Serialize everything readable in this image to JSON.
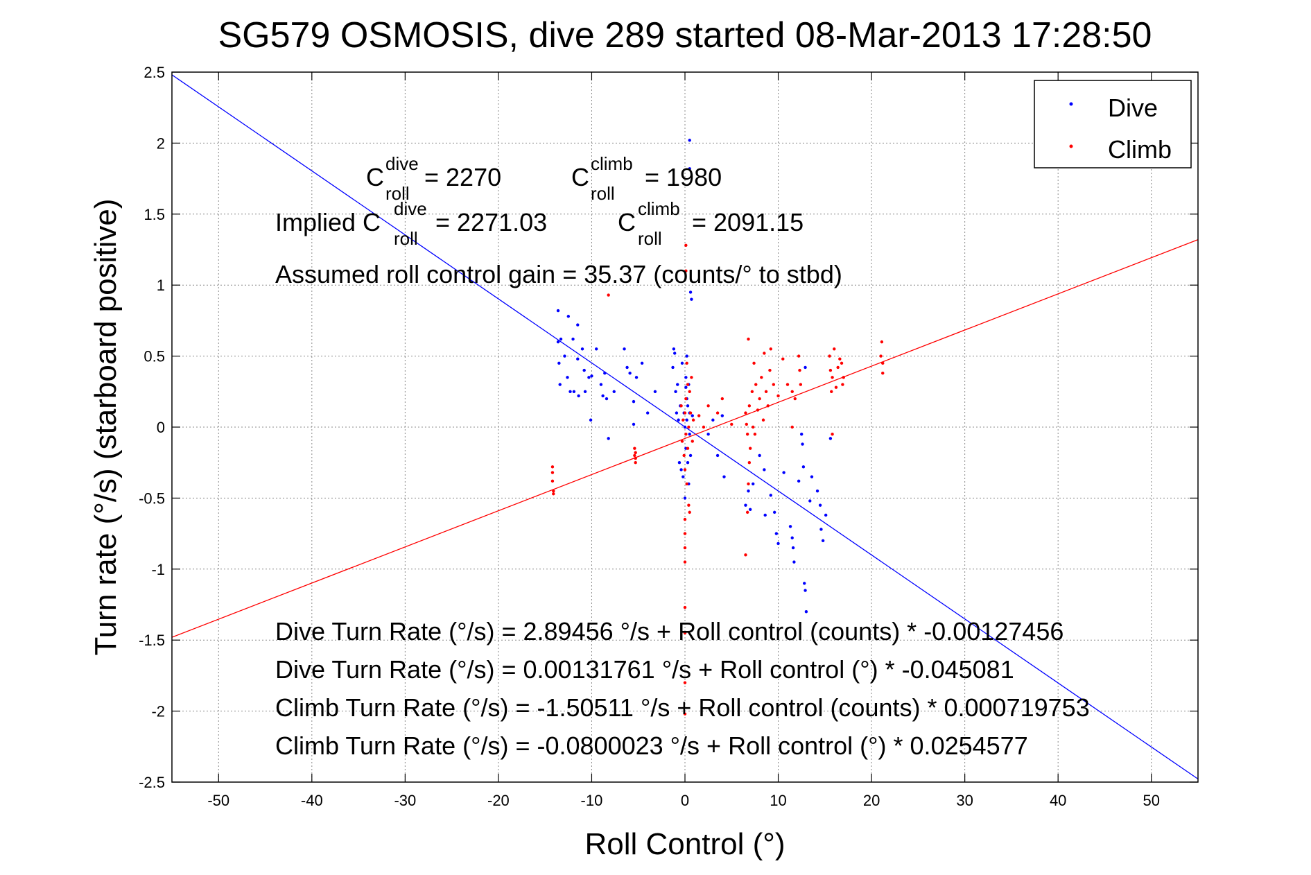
{
  "chart_data": {
    "type": "scatter",
    "title": "SG579 OSMOSIS, dive 289 started 08-Mar-2013 17:28:50",
    "xlabel": "Roll Control (°)",
    "ylabel": "Turn rate (°/s) (starboard positive)",
    "xlim": [
      -55,
      55
    ],
    "ylim": [
      -2.5,
      2.5
    ],
    "xticks": [
      -50,
      -40,
      -30,
      -20,
      -10,
      0,
      10,
      20,
      30,
      40,
      50
    ],
    "yticks": [
      -2.5,
      -2,
      -1.5,
      -1,
      -0.5,
      0,
      0.5,
      1,
      1.5,
      2,
      2.5
    ],
    "xtick_labels": [
      "-50",
      "-40",
      "-30",
      "-20",
      "-10",
      "0",
      "10",
      "20",
      "30",
      "40",
      "50"
    ],
    "ytick_labels": [
      "-2.5",
      "-2",
      "-1.5",
      "-1",
      "-0.5",
      "0",
      "0.5",
      "1",
      "1.5",
      "2",
      "2.5"
    ],
    "grid": true,
    "legend_position": "top-right",
    "series": [
      {
        "name": "Dive",
        "color": "#0000ff",
        "points": [
          [
            -13.6,
            0.82
          ],
          [
            -13.6,
            0.6
          ],
          [
            -13.5,
            0.45
          ],
          [
            -13.4,
            0.3
          ],
          [
            -13.3,
            0.62
          ],
          [
            -12.9,
            0.5
          ],
          [
            -12.6,
            0.35
          ],
          [
            -12.5,
            0.78
          ],
          [
            -12.3,
            0.25
          ],
          [
            -12.0,
            0.62
          ],
          [
            -11.9,
            0.25
          ],
          [
            -11.5,
            0.48
          ],
          [
            -11.5,
            0.72
          ],
          [
            -11.4,
            0.22
          ],
          [
            -11.0,
            0.55
          ],
          [
            -10.8,
            0.4
          ],
          [
            -10.7,
            0.25
          ],
          [
            -10.3,
            0.35
          ],
          [
            -10.1,
            0.05
          ],
          [
            -10.0,
            0.36
          ],
          [
            -9.5,
            0.55
          ],
          [
            -9.0,
            0.3
          ],
          [
            -8.8,
            0.22
          ],
          [
            -8.6,
            0.38
          ],
          [
            -8.4,
            0.2
          ],
          [
            -8.2,
            -0.08
          ],
          [
            -7.6,
            0.25
          ],
          [
            -6.5,
            0.55
          ],
          [
            -6.2,
            0.42
          ],
          [
            -5.9,
            0.38
          ],
          [
            -5.5,
            0.18
          ],
          [
            -5.5,
            0.02
          ],
          [
            -5.2,
            0.35
          ],
          [
            -4.6,
            0.45
          ],
          [
            -4.0,
            0.1
          ],
          [
            -3.2,
            0.25
          ],
          [
            -1.3,
            0.42
          ],
          [
            -1.2,
            0.55
          ],
          [
            -1.1,
            0.52
          ],
          [
            -1.0,
            0.25
          ],
          [
            -0.9,
            0.1
          ],
          [
            -0.8,
            0.3
          ],
          [
            -0.7,
            0.05
          ],
          [
            -0.6,
            -0.25
          ],
          [
            -0.5,
            0.15
          ],
          [
            -0.4,
            -0.3
          ],
          [
            -0.3,
            0.45
          ],
          [
            -0.2,
            -0.35
          ],
          [
            -0.1,
            0.1
          ],
          [
            0.0,
            0.0
          ],
          [
            0.0,
            -0.5
          ],
          [
            0.1,
            0.35
          ],
          [
            0.1,
            0.28
          ],
          [
            0.1,
            -0.15
          ],
          [
            0.2,
            0.5
          ],
          [
            0.2,
            0.2
          ],
          [
            0.2,
            0.05
          ],
          [
            0.3,
            -0.25
          ],
          [
            0.3,
            0.15
          ],
          [
            0.4,
            -0.4
          ],
          [
            0.4,
            0.3
          ],
          [
            0.5,
            0.1
          ],
          [
            0.5,
            -0.05
          ],
          [
            0.6,
            -0.2
          ],
          [
            0.6,
            0.95
          ],
          [
            0.7,
            0.9
          ],
          [
            0.8,
            0.08
          ],
          [
            0.5,
            1.82
          ],
          [
            0.5,
            2.02
          ],
          [
            2.5,
            -0.05
          ],
          [
            3.0,
            0.05
          ],
          [
            3.5,
            -0.2
          ],
          [
            4.0,
            0.08
          ],
          [
            4.2,
            -0.35
          ],
          [
            6.5,
            -0.55
          ],
          [
            6.8,
            -0.45
          ],
          [
            7.0,
            -0.58
          ],
          [
            7.3,
            -0.4
          ],
          [
            8.0,
            -0.2
          ],
          [
            8.5,
            -0.3
          ],
          [
            8.6,
            -0.62
          ],
          [
            9.2,
            -0.48
          ],
          [
            9.6,
            -0.6
          ],
          [
            9.8,
            -0.75
          ],
          [
            10.0,
            -0.82
          ],
          [
            10.6,
            -0.32
          ],
          [
            11.3,
            -0.7
          ],
          [
            11.5,
            -0.78
          ],
          [
            11.6,
            -0.85
          ],
          [
            11.7,
            -0.95
          ],
          [
            12.2,
            -0.38
          ],
          [
            12.5,
            -0.05
          ],
          [
            12.7,
            -0.28
          ],
          [
            12.8,
            -1.1
          ],
          [
            12.9,
            -1.15
          ],
          [
            13.0,
            -1.3
          ],
          [
            13.4,
            -0.52
          ],
          [
            13.6,
            -0.35
          ],
          [
            14.2,
            -0.45
          ],
          [
            14.5,
            -0.55
          ],
          [
            14.6,
            -0.72
          ],
          [
            14.8,
            -0.8
          ],
          [
            15.1,
            -0.62
          ],
          [
            15.6,
            -0.08
          ],
          [
            12.9,
            0.42
          ],
          [
            12.6,
            -0.12
          ]
        ]
      },
      {
        "name": "Climb",
        "color": "#ff0000",
        "points": [
          [
            -14.2,
            -0.28
          ],
          [
            -14.2,
            -0.32
          ],
          [
            -14.2,
            -0.38
          ],
          [
            -14.1,
            -0.45
          ],
          [
            -14.1,
            -0.47
          ],
          [
            -8.2,
            0.93
          ],
          [
            -5.4,
            -0.15
          ],
          [
            -5.4,
            -0.2
          ],
          [
            -5.3,
            -0.25
          ],
          [
            -5.3,
            -0.18
          ],
          [
            -5.3,
            -0.22
          ],
          [
            -0.4,
            0.15
          ],
          [
            -0.3,
            -0.1
          ],
          [
            -0.2,
            0.05
          ],
          [
            -0.1,
            -0.2
          ],
          [
            0.0,
            0.1
          ],
          [
            0.0,
            -0.3
          ],
          [
            0.1,
            0.2
          ],
          [
            0.1,
            -0.05
          ],
          [
            0.2,
            0.45
          ],
          [
            0.2,
            -0.4
          ],
          [
            0.3,
            0.3
          ],
          [
            0.3,
            -0.15
          ],
          [
            0.4,
            0.0
          ],
          [
            0.4,
            -0.55
          ],
          [
            0.5,
            0.25
          ],
          [
            0.5,
            -0.6
          ],
          [
            0.0,
            -0.65
          ],
          [
            0.0,
            -0.75
          ],
          [
            0.0,
            -0.85
          ],
          [
            0.0,
            -0.95
          ],
          [
            0.0,
            -1.27
          ],
          [
            0.0,
            -1.45
          ],
          [
            0.0,
            -1.8
          ],
          [
            0.0,
            -2.02
          ],
          [
            0.1,
            1.28
          ],
          [
            0.1,
            1.1
          ],
          [
            0.6,
            0.1
          ],
          [
            0.7,
            0.35
          ],
          [
            0.8,
            -0.1
          ],
          [
            0.9,
            0.05
          ],
          [
            1.5,
            0.08
          ],
          [
            2.0,
            0.0
          ],
          [
            2.5,
            0.15
          ],
          [
            3.5,
            0.1
          ],
          [
            4.0,
            0.2
          ],
          [
            5.0,
            0.02
          ],
          [
            6.5,
            0.1
          ],
          [
            6.6,
            0.02
          ],
          [
            6.7,
            -0.05
          ],
          [
            6.8,
            0.62
          ],
          [
            6.9,
            0.15
          ],
          [
            7.0,
            -0.15
          ],
          [
            7.2,
            0.25
          ],
          [
            7.3,
            0.0
          ],
          [
            7.4,
            0.45
          ],
          [
            7.5,
            -0.05
          ],
          [
            7.6,
            0.3
          ],
          [
            7.8,
            0.12
          ],
          [
            8.0,
            0.2
          ],
          [
            8.2,
            0.35
          ],
          [
            8.4,
            0.05
          ],
          [
            8.5,
            0.52
          ],
          [
            8.7,
            0.25
          ],
          [
            8.9,
            0.15
          ],
          [
            9.1,
            0.4
          ],
          [
            9.2,
            0.55
          ],
          [
            9.5,
            0.3
          ],
          [
            10.0,
            0.22
          ],
          [
            10.5,
            0.48
          ],
          [
            11.0,
            0.3
          ],
          [
            11.5,
            0.25
          ],
          [
            6.5,
            -0.9
          ],
          [
            6.7,
            -0.6
          ],
          [
            6.8,
            -0.4
          ],
          [
            6.9,
            -0.25
          ],
          [
            11.5,
            0.0
          ],
          [
            11.8,
            0.2
          ],
          [
            12.2,
            0.5
          ],
          [
            12.3,
            0.4
          ],
          [
            12.4,
            0.3
          ],
          [
            15.5,
            0.5
          ],
          [
            15.6,
            0.4
          ],
          [
            15.7,
            0.25
          ],
          [
            15.8,
            0.35
          ],
          [
            16.0,
            0.55
          ],
          [
            16.2,
            0.28
          ],
          [
            16.4,
            0.42
          ],
          [
            16.6,
            0.48
          ],
          [
            16.8,
            0.45
          ],
          [
            16.9,
            0.3
          ],
          [
            17.0,
            0.35
          ],
          [
            15.8,
            -0.05
          ],
          [
            21.0,
            0.5
          ],
          [
            21.1,
            0.6
          ],
          [
            21.2,
            0.38
          ],
          [
            21.2,
            0.45
          ]
        ]
      }
    ],
    "fit_lines": [
      {
        "name": "Dive fit",
        "color": "#0000ff",
        "intercept": 0.00131761,
        "slope": -0.045081
      },
      {
        "name": "Climb fit",
        "color": "#ff0000",
        "intercept": -0.0800023,
        "slope": 0.0254577
      }
    ]
  },
  "legend": {
    "dive_label": "Dive",
    "climb_label": "Climb"
  },
  "annotations": {
    "c_roll_dive_prefix": "C",
    "c_roll_dive_sup": "dive",
    "c_roll_dive_sub": "roll",
    "c_roll_dive_value": " = 2270",
    "c_roll_climb_prefix": "C",
    "c_roll_climb_sup": "climb",
    "c_roll_climb_sub": "roll",
    "c_roll_climb_value": " = 1980",
    "implied_prefix": "Implied C",
    "implied_dive_sup": "dive",
    "implied_dive_sub": "roll",
    "implied_dive_value": " = 2271.03",
    "implied_climb_prefix": "C",
    "implied_climb_sup": "climb",
    "implied_climb_sub": "roll",
    "implied_climb_value": " = 2091.15",
    "gain": "Assumed roll control gain = 35.37 (counts/° to stbd)",
    "eq1": "Dive Turn Rate (°/s) = 2.89456 °/s + Roll control (counts) * -0.00127456",
    "eq2": "Dive Turn Rate (°/s) = 0.00131761 °/s + Roll control (°) * -0.045081",
    "eq3": "Climb Turn Rate (°/s) = -1.50511 °/s + Roll control (counts) * 0.000719753",
    "eq4": "Climb Turn Rate (°/s) = -0.0800023 °/s + Roll control (°) * 0.0254577"
  }
}
